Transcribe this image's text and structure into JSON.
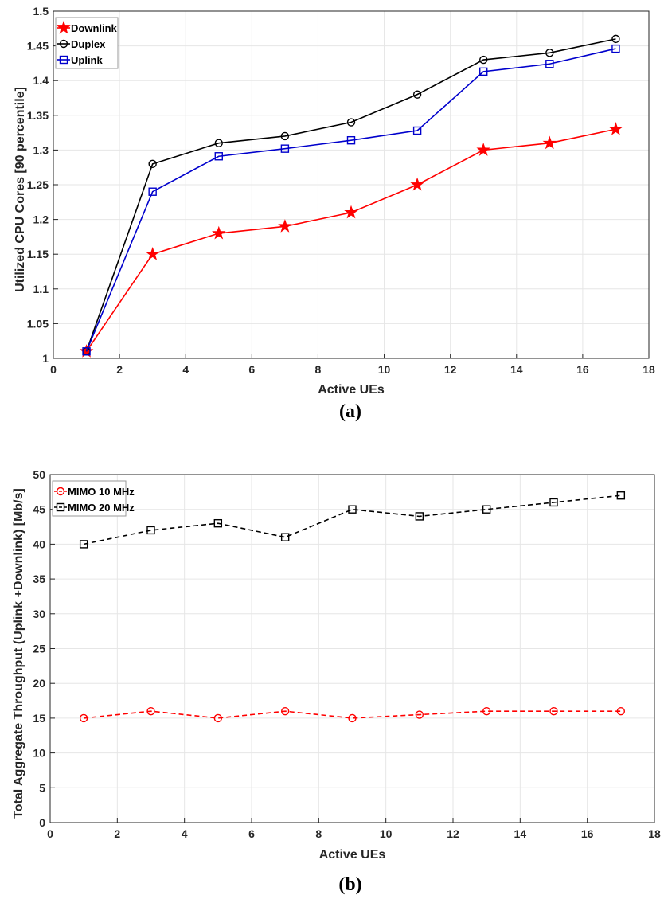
{
  "chart_data": [
    {
      "type": "line",
      "caption": "(a)",
      "xlabel": "Active UEs",
      "ylabel": "Utilized CPU Cores [90 percentile]",
      "xlim": [
        0,
        18
      ],
      "ylim": [
        1,
        1.5
      ],
      "xticks": [
        "0",
        "2",
        "4",
        "6",
        "8",
        "10",
        "12",
        "14",
        "16",
        "18"
      ],
      "yticks": [
        "1",
        "1.05",
        "1.1",
        "1.15",
        "1.2",
        "1.25",
        "1.3",
        "1.35",
        "1.4",
        "1.45",
        "1.5"
      ],
      "grid": true,
      "legend_position": "top-left",
      "x": [
        1,
        3,
        5,
        7,
        9,
        11,
        13,
        15,
        17
      ],
      "series": [
        {
          "name": "Downlink",
          "color": "#ff0000",
          "marker": "star",
          "dash": false,
          "values": [
            1.01,
            1.15,
            1.18,
            1.19,
            1.21,
            1.25,
            1.3,
            1.31,
            1.33
          ]
        },
        {
          "name": "Duplex",
          "color": "#000000",
          "marker": "circle",
          "dash": false,
          "values": [
            1.01,
            1.28,
            1.31,
            1.32,
            1.34,
            1.38,
            1.43,
            1.44,
            1.46
          ]
        },
        {
          "name": "Uplink",
          "color": "#0000cc",
          "marker": "square",
          "dash": false,
          "values": [
            1.01,
            1.24,
            1.291,
            1.302,
            1.314,
            1.328,
            1.413,
            1.424,
            1.446
          ]
        }
      ]
    },
    {
      "type": "line",
      "caption": "(b)",
      "xlabel": "Active UEs",
      "ylabel": "Total Aggregate Throughput (Uplink +Downlink) [Mb/s]",
      "xlim": [
        0,
        18
      ],
      "ylim": [
        0,
        50
      ],
      "xticks": [
        "0",
        "2",
        "4",
        "6",
        "8",
        "10",
        "12",
        "14",
        "16",
        "18"
      ],
      "yticks": [
        "0",
        "5",
        "10",
        "15",
        "20",
        "25",
        "30",
        "35",
        "40",
        "45",
        "50"
      ],
      "grid": true,
      "legend_position": "top-left",
      "x": [
        1,
        3,
        5,
        7,
        9,
        11,
        13,
        15,
        17
      ],
      "series": [
        {
          "name": "MIMO 10 MHz",
          "color": "#ff0000",
          "marker": "circle",
          "dash": true,
          "values": [
            15,
            16,
            15,
            16,
            15,
            15.5,
            16,
            16,
            16
          ]
        },
        {
          "name": "MIMO 20 MHz",
          "color": "#000000",
          "marker": "square",
          "dash": true,
          "values": [
            40,
            42,
            43,
            41,
            45,
            44,
            45,
            46,
            47
          ]
        }
      ]
    }
  ]
}
